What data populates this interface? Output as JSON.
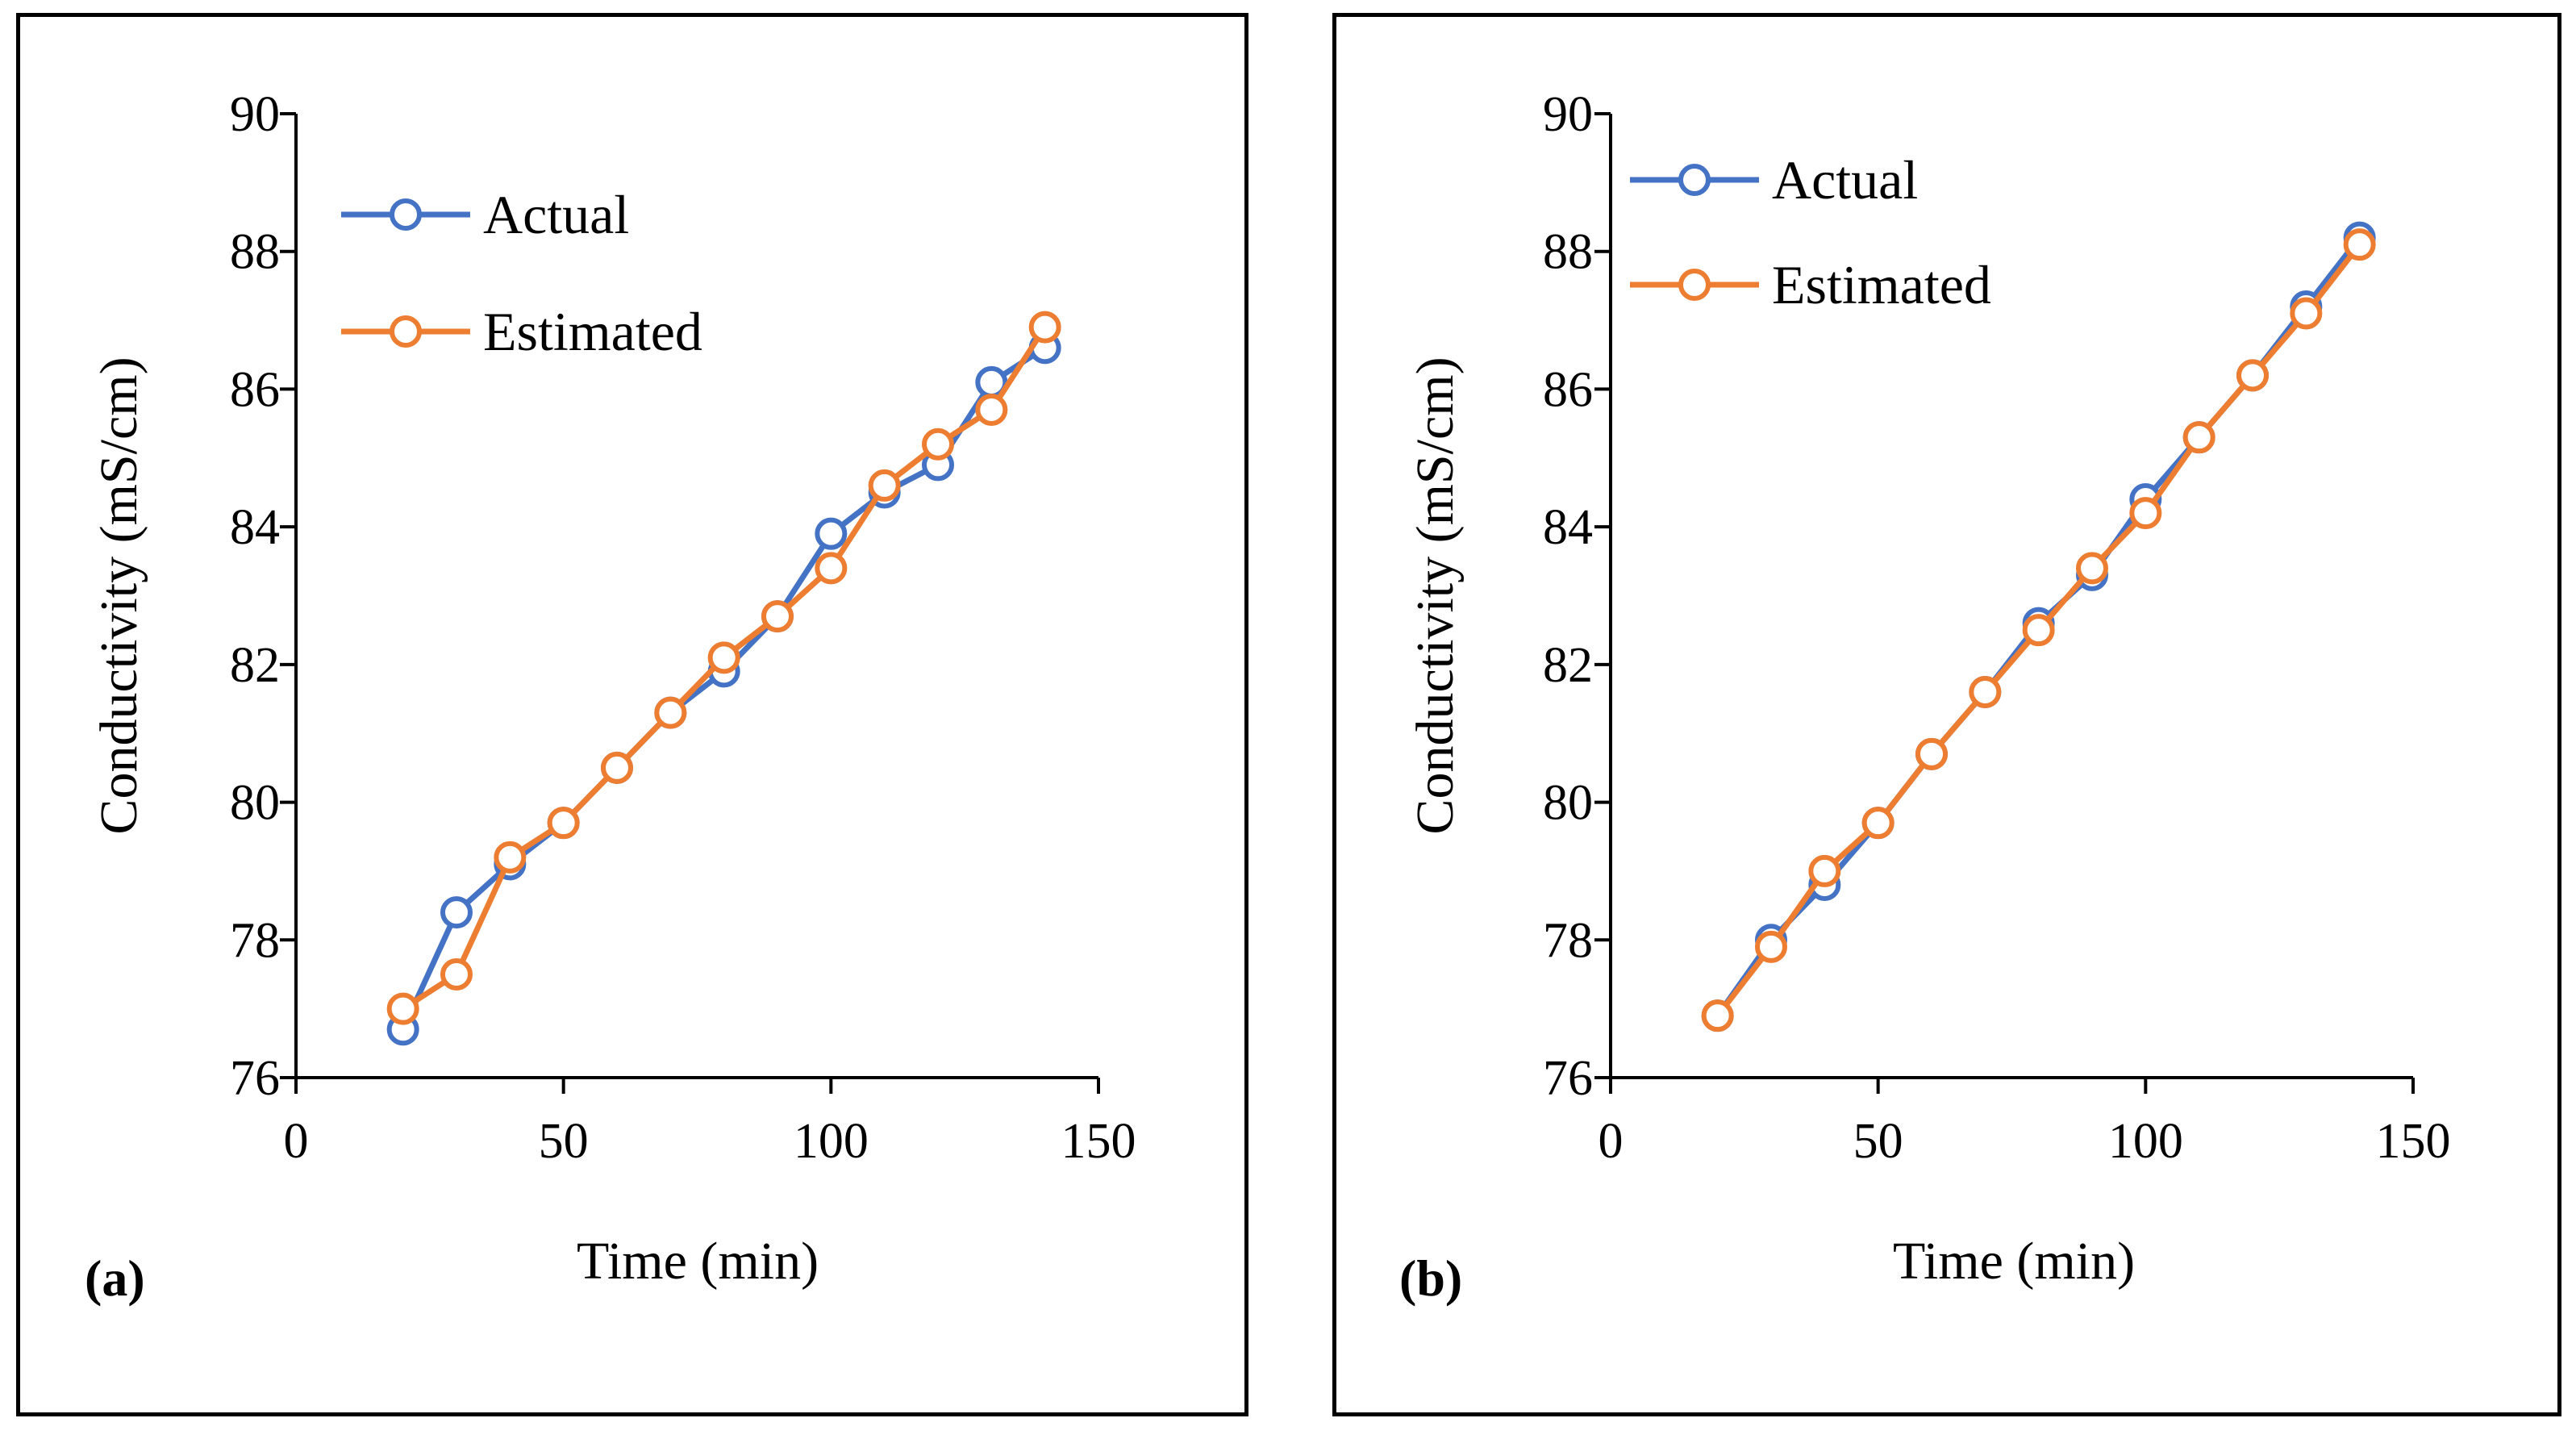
{
  "chart_data": [
    {
      "type": "line",
      "panel_label": "(a)",
      "xlabel": "Time (min)",
      "ylabel": "Conductivity (mS/cm)",
      "xlim": [
        0,
        150
      ],
      "ylim": [
        76,
        90
      ],
      "xticks": [
        0,
        50,
        100,
        150
      ],
      "yticks": [
        76,
        78,
        80,
        82,
        84,
        86,
        88,
        90
      ],
      "grid": false,
      "legend_position": "top-left",
      "x": [
        20,
        30,
        40,
        50,
        60,
        70,
        80,
        90,
        100,
        110,
        120,
        130,
        140
      ],
      "series": [
        {
          "name": "Actual",
          "color": "#4472C4",
          "values": [
            76.7,
            78.4,
            79.1,
            79.7,
            80.5,
            81.3,
            81.9,
            82.7,
            83.9,
            84.5,
            84.9,
            86.1,
            86.6
          ]
        },
        {
          "name": "Estimated",
          "color": "#ED7D31",
          "values": [
            77.0,
            77.5,
            79.2,
            79.7,
            80.5,
            81.3,
            82.1,
            82.7,
            83.4,
            84.6,
            85.2,
            85.7,
            86.9
          ]
        }
      ]
    },
    {
      "type": "line",
      "panel_label": "(b)",
      "xlabel": "Time (min)",
      "ylabel": "Conductivity (mS/cm)",
      "xlim": [
        0,
        150
      ],
      "ylim": [
        76,
        90
      ],
      "xticks": [
        0,
        50,
        100,
        150
      ],
      "yticks": [
        76,
        78,
        80,
        82,
        84,
        86,
        88,
        90
      ],
      "grid": false,
      "legend_position": "top-left",
      "x": [
        20,
        30,
        40,
        50,
        60,
        70,
        80,
        90,
        100,
        110,
        120,
        130,
        140
      ],
      "series": [
        {
          "name": "Actual",
          "color": "#4472C4",
          "values": [
            76.9,
            78.0,
            78.8,
            79.7,
            80.7,
            81.6,
            82.6,
            83.3,
            84.4,
            85.3,
            86.2,
            87.2,
            88.2
          ]
        },
        {
          "name": "Estimated",
          "color": "#ED7D31",
          "values": [
            76.9,
            77.9,
            79.0,
            79.7,
            80.7,
            81.6,
            82.5,
            83.4,
            84.2,
            85.3,
            86.2,
            87.1,
            88.1
          ]
        }
      ]
    }
  ]
}
